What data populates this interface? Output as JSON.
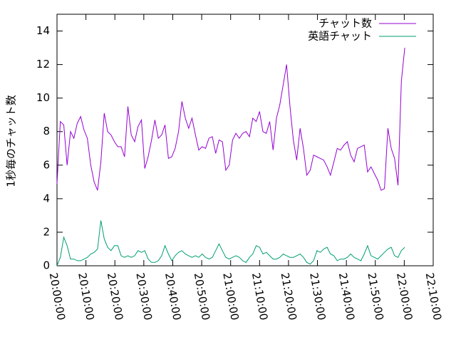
{
  "chart_data": {
    "type": "line",
    "ylabel": "1秒毎のチャット数",
    "x": [
      "20:00:00",
      "20:01:10",
      "20:02:20",
      "20:03:30",
      "20:04:40",
      "20:05:50",
      "20:07:00",
      "20:08:10",
      "20:09:20",
      "20:10:30",
      "20:11:40",
      "20:12:50",
      "20:14:00",
      "20:15:10",
      "20:16:20",
      "20:17:30",
      "20:18:40",
      "20:19:50",
      "20:21:00",
      "20:22:10",
      "20:23:20",
      "20:24:30",
      "20:25:40",
      "20:26:50",
      "20:28:00",
      "20:29:10",
      "20:30:20",
      "20:31:30",
      "20:32:40",
      "20:33:50",
      "20:35:00",
      "20:36:10",
      "20:37:20",
      "20:38:30",
      "20:39:40",
      "20:40:50",
      "20:42:00",
      "20:43:10",
      "20:44:20",
      "20:45:30",
      "20:46:40",
      "20:47:50",
      "20:49:00",
      "20:50:10",
      "20:51:20",
      "20:52:30",
      "20:53:40",
      "20:54:50",
      "20:56:00",
      "20:57:10",
      "20:58:20",
      "20:59:30",
      "21:00:40",
      "21:01:50",
      "21:03:00",
      "21:04:10",
      "21:05:20",
      "21:06:30",
      "21:07:40",
      "21:08:50",
      "21:10:00",
      "21:11:10",
      "21:12:20",
      "21:13:30",
      "21:14:40",
      "21:15:50",
      "21:17:00",
      "21:18:10",
      "21:19:20",
      "21:20:30",
      "21:21:40",
      "21:22:50",
      "21:24:00",
      "21:25:10",
      "21:26:20",
      "21:27:30",
      "21:28:40",
      "21:29:50",
      "21:31:00",
      "21:32:10",
      "21:33:20",
      "21:34:30",
      "21:35:40",
      "21:36:50",
      "21:38:00",
      "21:39:10",
      "21:40:20",
      "21:41:30",
      "21:42:40",
      "21:43:50",
      "21:45:00",
      "21:46:10",
      "21:47:20",
      "21:48:30",
      "21:49:40",
      "21:50:50",
      "21:52:00",
      "21:53:10",
      "21:54:20",
      "21:55:30",
      "21:56:40",
      "21:57:50",
      "21:59:00",
      "22:00:10"
    ],
    "series": [
      {
        "name": "チャット数",
        "color": "#9400d3",
        "values": [
          4.9,
          8.6,
          8.4,
          6.0,
          8.0,
          7.6,
          8.5,
          8.9,
          8.1,
          7.6,
          6.0,
          5.0,
          4.5,
          6.2,
          9.1,
          8.0,
          7.8,
          7.4,
          7.1,
          7.1,
          6.5,
          9.5,
          7.8,
          7.4,
          8.3,
          8.7,
          5.8,
          6.5,
          7.5,
          8.7,
          7.6,
          7.8,
          8.4,
          6.4,
          6.5,
          7.0,
          8.0,
          9.8,
          8.8,
          8.2,
          8.8,
          7.8,
          6.9,
          7.1,
          7.0,
          7.6,
          7.7,
          6.7,
          7.5,
          7.4,
          5.7,
          6.0,
          7.5,
          7.9,
          7.6,
          7.9,
          8.0,
          7.7,
          8.8,
          8.6,
          9.2,
          8.0,
          7.9,
          8.6,
          6.9,
          8.8,
          9.6,
          10.8,
          12.0,
          9.5,
          7.5,
          6.3,
          8.2,
          7.0,
          5.4,
          5.7,
          6.6,
          6.5,
          6.4,
          6.3,
          5.9,
          5.4,
          6.2,
          7.0,
          6.9,
          7.2,
          7.4,
          6.6,
          6.2,
          7.0,
          7.1,
          7.2,
          5.6,
          5.9,
          5.5,
          5.1,
          4.5,
          4.6,
          8.2,
          7.0,
          6.4,
          4.8,
          11.0,
          13.0
        ]
      },
      {
        "name": "英語チャット",
        "color": "#009e73",
        "values": [
          0.0,
          0.5,
          1.7,
          1.2,
          0.4,
          0.4,
          0.3,
          0.3,
          0.4,
          0.5,
          0.7,
          0.8,
          1.0,
          2.7,
          1.6,
          1.1,
          0.9,
          1.2,
          1.2,
          0.6,
          0.5,
          0.6,
          0.5,
          0.6,
          0.9,
          0.8,
          0.9,
          0.4,
          0.2,
          0.2,
          0.3,
          0.6,
          1.2,
          0.7,
          0.3,
          0.6,
          0.8,
          0.9,
          0.7,
          0.6,
          0.5,
          0.6,
          0.5,
          0.7,
          0.5,
          0.4,
          0.5,
          0.9,
          1.3,
          0.9,
          0.5,
          0.4,
          0.5,
          0.6,
          0.5,
          0.3,
          0.2,
          0.5,
          0.7,
          1.2,
          1.1,
          0.7,
          0.8,
          0.6,
          0.4,
          0.4,
          0.5,
          0.7,
          0.6,
          0.5,
          0.5,
          0.6,
          0.7,
          0.5,
          0.2,
          0.1,
          0.3,
          0.9,
          0.8,
          1.0,
          1.1,
          0.7,
          0.6,
          0.3,
          0.4,
          0.4,
          0.5,
          0.7,
          0.5,
          0.4,
          0.3,
          0.7,
          1.2,
          0.6,
          0.5,
          0.4,
          0.6,
          0.8,
          1.0,
          1.1,
          0.6,
          0.5,
          0.9,
          1.1
        ]
      }
    ],
    "xlim": [
      "20:00:00",
      "22:10:00"
    ],
    "xticks": [
      "20:00:00",
      "20:10:00",
      "20:20:00",
      "20:30:00",
      "20:40:00",
      "20:50:00",
      "21:00:00",
      "21:10:00",
      "21:20:00",
      "21:30:00",
      "21:40:00",
      "21:50:00",
      "22:00:00",
      "22:10:00"
    ],
    "ylim": [
      0,
      15
    ],
    "yticks": [
      0,
      2,
      4,
      6,
      8,
      10,
      12,
      14
    ],
    "legend": "upper right"
  }
}
